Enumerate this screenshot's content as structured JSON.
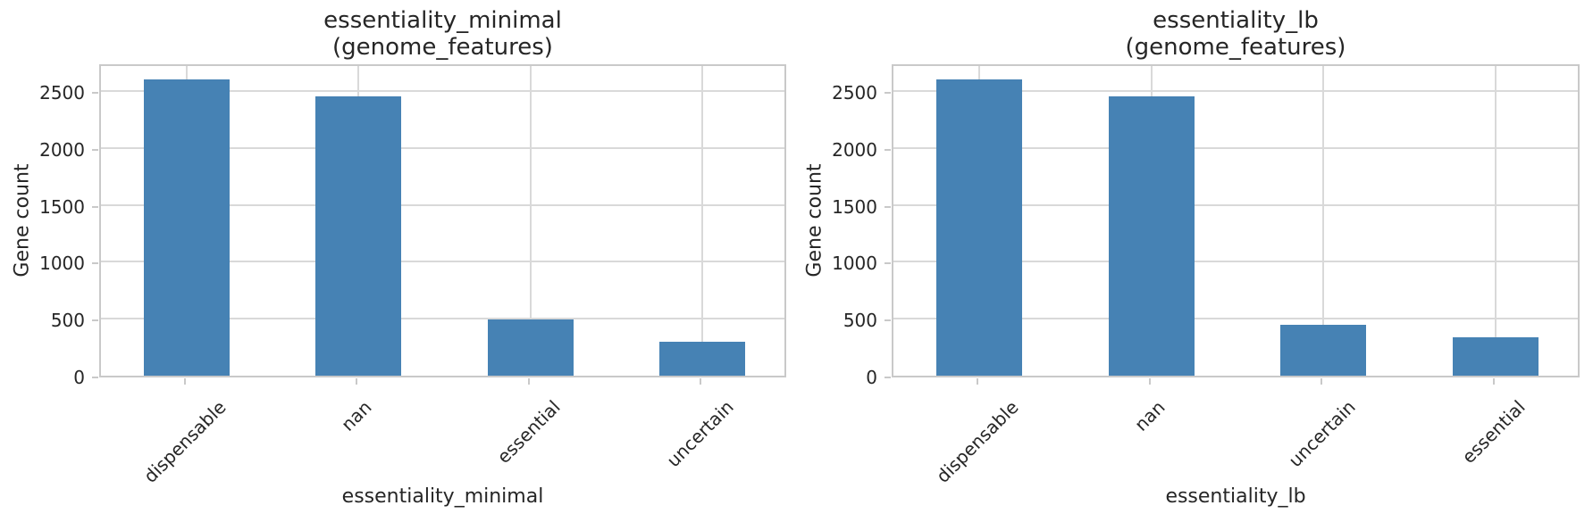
{
  "colors": {
    "bar": "#4682b4",
    "grid": "#d9d9d9",
    "spine": "#c9c9c9",
    "text": "#262626"
  },
  "chart_data": [
    {
      "type": "bar",
      "title": "essentiality_minimal\n(genome_features)",
      "title_lines": [
        "essentiality_minimal",
        "(genome_features)"
      ],
      "xlabel": "essentiality_minimal",
      "ylabel": "Gene count",
      "categories": [
        "dispensable",
        "nan",
        "essential",
        "uncertain"
      ],
      "values": [
        2600,
        2450,
        490,
        300
      ],
      "yticks": [
        0,
        500,
        1000,
        1500,
        2000,
        2500
      ],
      "ylim": [
        0,
        2750
      ],
      "bar_color": "#4682b4",
      "grid": true,
      "legend_position": "none",
      "x_tick_rotation_deg": 45
    },
    {
      "type": "bar",
      "title": "essentiality_lb\n(genome_features)",
      "title_lines": [
        "essentiality_lb",
        "(genome_features)"
      ],
      "xlabel": "essentiality_lb",
      "ylabel": "Gene count",
      "categories": [
        "dispensable",
        "nan",
        "uncertain",
        "essential"
      ],
      "values": [
        2600,
        2450,
        450,
        335
      ],
      "yticks": [
        0,
        500,
        1000,
        1500,
        2000,
        2500
      ],
      "ylim": [
        0,
        2750
      ],
      "bar_color": "#4682b4",
      "grid": true,
      "legend_position": "none",
      "x_tick_rotation_deg": 45
    }
  ]
}
